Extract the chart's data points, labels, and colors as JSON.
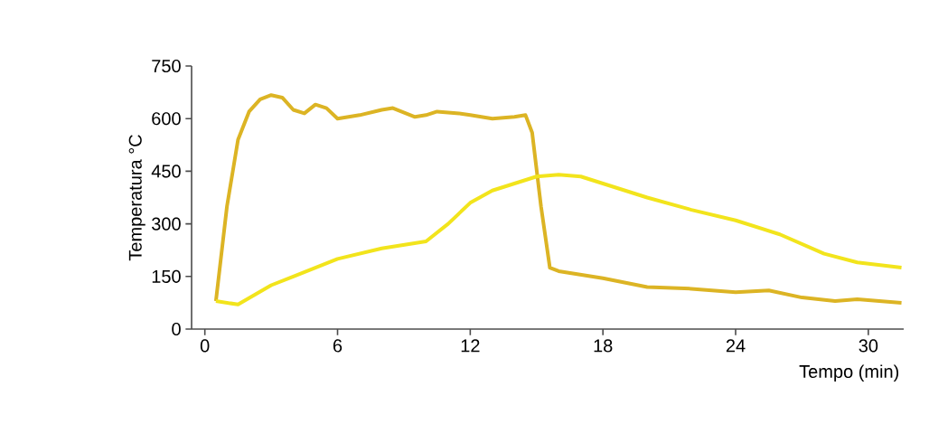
{
  "chart_data": {
    "type": "line",
    "xlabel": "Tempo (min)",
    "ylabel": "Temperatura °C",
    "xlim": [
      -0.6,
      31.6
    ],
    "ylim": [
      0,
      750
    ],
    "xticks": [
      0,
      6,
      12,
      18,
      24,
      30
    ],
    "yticks": [
      0,
      150,
      300,
      450,
      600,
      750
    ],
    "grid": false,
    "marker": "none",
    "line_style": "solid",
    "series": [
      {
        "color": "#dcb424",
        "x": [
          0.5,
          1.0,
          1.5,
          2.0,
          2.5,
          3.0,
          3.5,
          4.0,
          4.5,
          5.0,
          5.5,
          6.0,
          7.0,
          8.0,
          8.5,
          9.5,
          10.0,
          10.5,
          11.5,
          12.0,
          13.0,
          14.0,
          14.5,
          14.8,
          15.2,
          15.6,
          16.0,
          18.0,
          20.0,
          22.0,
          24.0,
          25.5,
          27.0,
          28.5,
          29.5,
          31.5
        ],
        "values": [
          80,
          350,
          540,
          620,
          655,
          667,
          660,
          625,
          615,
          640,
          630,
          600,
          610,
          625,
          630,
          605,
          610,
          620,
          615,
          610,
          600,
          605,
          610,
          560,
          350,
          175,
          165,
          145,
          120,
          115,
          105,
          110,
          90,
          80,
          85,
          75
        ]
      },
      {
        "color": "#f2e41c",
        "x": [
          0.5,
          1.5,
          3.0,
          4.0,
          6.0,
          8.0,
          10.0,
          11.0,
          12.0,
          13.0,
          14.0,
          15.0,
          16.0,
          17.0,
          18.0,
          20.0,
          22.0,
          24.0,
          26.0,
          28.0,
          29.5,
          31.5
        ],
        "values": [
          80,
          70,
          125,
          150,
          200,
          230,
          250,
          300,
          360,
          395,
          415,
          435,
          440,
          435,
          415,
          375,
          340,
          310,
          270,
          215,
          190,
          175
        ]
      }
    ]
  }
}
